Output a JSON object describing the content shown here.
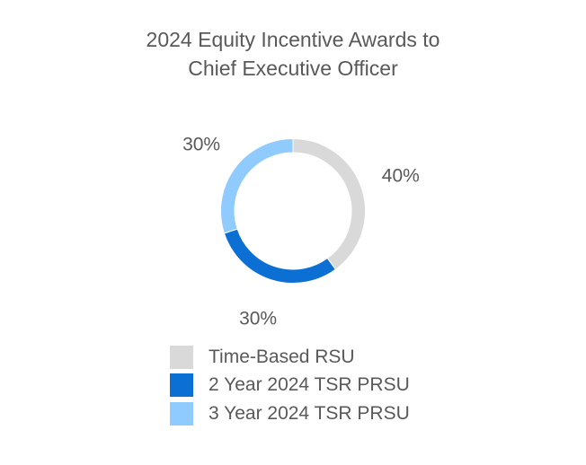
{
  "chart_data": {
    "type": "pie",
    "variant": "donut",
    "title_lines": [
      "2024 Equity Incentive Awards to",
      "Chief Executive Officer"
    ],
    "legend_position": "bottom",
    "slices": [
      {
        "label": "Time-Based RSU",
        "value": 40,
        "display": "40%",
        "color": "#D9D9D9"
      },
      {
        "label": "2 Year 2024 TSR PRSU",
        "value": 30,
        "display": "30%",
        "color": "#0B6FD4"
      },
      {
        "label": "3 Year 2024 TSR PRSU",
        "value": 30,
        "display": "30%",
        "color": "#8FCBFF"
      }
    ]
  }
}
